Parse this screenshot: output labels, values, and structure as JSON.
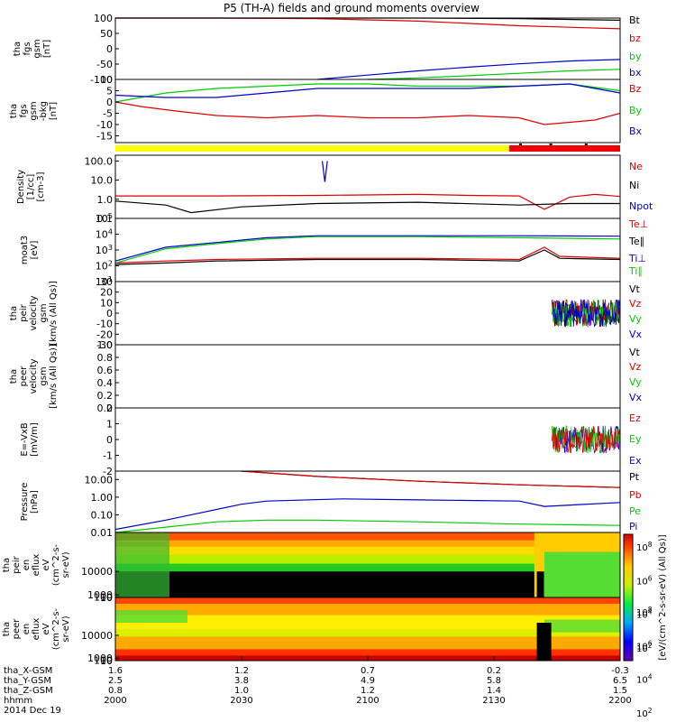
{
  "title": "P5 (TH-A) fields and ground moments overview",
  "colors": {
    "black": "#000000",
    "red": "#dd0000",
    "green": "#00cc00",
    "blue": "#0000cc",
    "yellow": "#ffff00",
    "barRed": "#ee0000"
  },
  "chart_data": [
    {
      "type": "line",
      "panel": "fgs_gsm_total",
      "ylabel": [
        "tha",
        "fgs",
        "gsm",
        "[nT]"
      ],
      "ylim": [
        -100,
        100
      ],
      "yticks": [
        "100",
        "50",
        "0",
        "-50",
        "-100"
      ],
      "series": [
        {
          "name": "Bt",
          "color": "black",
          "x": [
            0,
            0.2,
            0.4,
            0.6,
            0.8,
            1.0
          ],
          "y": [
            100,
            100,
            100,
            100,
            98,
            93
          ]
        },
        {
          "name": "bz",
          "color": "red",
          "x": [
            0,
            0.1,
            0.2,
            0.4,
            0.6,
            0.8,
            1.0
          ],
          "y": [
            100,
            100,
            100,
            98,
            90,
            75,
            65
          ]
        },
        {
          "name": "by",
          "color": "green",
          "x": [
            0.5,
            0.6,
            0.7,
            0.8,
            0.9,
            1.0
          ],
          "y": [
            -100,
            -95,
            -88,
            -80,
            -72,
            -67
          ]
        },
        {
          "name": "bx",
          "color": "blue",
          "x": [
            0.4,
            0.5,
            0.6,
            0.7,
            0.8,
            0.9,
            1.0
          ],
          "y": [
            -100,
            -86,
            -72,
            -60,
            -49,
            -40,
            -35
          ]
        }
      ]
    },
    {
      "type": "line",
      "panel": "fgs_gsm_detail",
      "ylabel": [
        "tha",
        "fgs",
        "gsm",
        "-bkg",
        "[nT]"
      ],
      "ylim": [
        -18,
        10
      ],
      "yticks": [
        "10",
        "5",
        "0",
        "-5",
        "-10",
        "-15"
      ],
      "series": [
        {
          "name": "Bz",
          "color": "red",
          "x": [
            0,
            0.05,
            0.12,
            0.2,
            0.3,
            0.4,
            0.5,
            0.6,
            0.7,
            0.8,
            0.85,
            0.9,
            0.95,
            1.0
          ],
          "y": [
            0,
            -2,
            -4,
            -6,
            -7,
            -6,
            -7,
            -7,
            -6,
            -7,
            -10,
            -9,
            -8,
            -5
          ]
        },
        {
          "name": "By",
          "color": "green",
          "x": [
            0,
            0.1,
            0.2,
            0.3,
            0.4,
            0.5,
            0.6,
            0.7,
            0.8,
            0.9,
            1.0
          ],
          "y": [
            0,
            4,
            6,
            7,
            8,
            8,
            7,
            7,
            7,
            8,
            5
          ]
        },
        {
          "name": "Bx",
          "color": "blue",
          "x": [
            0,
            0.1,
            0.2,
            0.3,
            0.4,
            0.5,
            0.6,
            0.7,
            0.8,
            0.9,
            1.0
          ],
          "y": [
            3,
            2,
            2,
            4,
            6,
            6,
            6,
            6,
            7,
            8,
            4
          ]
        }
      ]
    },
    {
      "type": "bar",
      "panel": "mode_bar",
      "segments": [
        {
          "from": 0,
          "to": 0.78,
          "color": "yellow"
        },
        {
          "from": 0.78,
          "to": 1.0,
          "color": "barRed"
        }
      ]
    },
    {
      "type": "line",
      "panel": "density",
      "scale": "log",
      "ylabel": [
        "Density",
        "[1/cc]",
        "[cm-3]"
      ],
      "ylim": [
        0.1,
        200
      ],
      "yticks": [
        "100.0",
        "10.0",
        "1.0",
        "0.1"
      ],
      "series": [
        {
          "name": "Ne",
          "color": "red",
          "x": [
            0,
            0.2,
            0.4,
            0.6,
            0.7,
            0.8,
            0.85,
            0.9,
            0.95,
            1.0
          ],
          "y": [
            1.5,
            1.5,
            1.6,
            1.8,
            1.6,
            1.5,
            0.3,
            1.3,
            1.8,
            1.4
          ]
        },
        {
          "name": "Ni",
          "color": "black",
          "x": [
            0,
            0.1,
            0.15,
            0.25,
            0.4,
            0.6,
            0.8,
            0.9,
            1.0
          ],
          "y": [
            0.8,
            0.5,
            0.2,
            0.4,
            0.6,
            0.7,
            0.5,
            0.6,
            0.6
          ]
        },
        {
          "name": "Npot",
          "color": "blue",
          "x": [
            0.41,
            0.415,
            0.42
          ],
          "y": [
            100,
            8,
            100
          ]
        }
      ]
    },
    {
      "type": "line",
      "panel": "temperature",
      "scale": "log",
      "ylabel": [
        "moat3",
        "[eV]"
      ],
      "ylim": [
        10,
        100000
      ],
      "yticks": [
        "10^5",
        "10^4",
        "10^3",
        "10^2",
        "10^1"
      ],
      "series": [
        {
          "name": "Te⊥",
          "color": "red",
          "x": [
            0,
            0.1,
            0.2,
            0.4,
            0.6,
            0.8,
            0.85,
            0.88,
            1.0
          ],
          "y": [
            150,
            200,
            250,
            300,
            300,
            250,
            1500,
            400,
            300
          ]
        },
        {
          "name": "Te∥",
          "color": "black",
          "x": [
            0,
            0.1,
            0.2,
            0.4,
            0.6,
            0.8,
            0.85,
            0.88,
            1.0
          ],
          "y": [
            120,
            150,
            200,
            250,
            250,
            200,
            1000,
            300,
            250
          ]
        },
        {
          "name": "Ti⊥",
          "color": "blue",
          "x": [
            0,
            0.1,
            0.2,
            0.3,
            0.4,
            0.6,
            0.8,
            1.0
          ],
          "y": [
            200,
            1500,
            3000,
            6000,
            8000,
            8000,
            8000,
            7500
          ]
        },
        {
          "name": "Ti∥",
          "color": "green",
          "x": [
            0,
            0.1,
            0.2,
            0.3,
            0.4,
            0.6,
            0.8,
            1.0
          ],
          "y": [
            150,
            1200,
            2500,
            5000,
            7000,
            7000,
            6000,
            5000
          ]
        }
      ]
    },
    {
      "type": "line",
      "panel": "peir_velocity",
      "ylabel": [
        "tha",
        "peir",
        "velocity",
        "gsm",
        "[km/s (All Qs)]"
      ],
      "ylim": [
        -30,
        30
      ],
      "yticks": [
        "30",
        "20",
        "10",
        "0",
        "-10",
        "-20",
        "-30"
      ],
      "series": [
        {
          "name": "Vt",
          "color": "black"
        },
        {
          "name": "Vz",
          "color": "red"
        },
        {
          "name": "Vy",
          "color": "green"
        },
        {
          "name": "Vx",
          "color": "blue"
        }
      ]
    },
    {
      "type": "line",
      "panel": "peer_velocity",
      "ylabel": [
        "tha",
        "peer",
        "velocity",
        "gsm",
        "[km/s (All Qs)]"
      ],
      "ylim": [
        0,
        1
      ],
      "yticks": [
        "1.0",
        "0.8",
        "0.6",
        "0.4",
        "0.2",
        "0.0"
      ],
      "series": [
        {
          "name": "Vt",
          "color": "black"
        },
        {
          "name": "Vz",
          "color": "red"
        },
        {
          "name": "Vy",
          "color": "green"
        },
        {
          "name": "Vx",
          "color": "blue"
        }
      ]
    },
    {
      "type": "line",
      "panel": "efield",
      "ylabel": [
        "E=-VxB",
        "[mV/m]"
      ],
      "ylim": [
        -2,
        2
      ],
      "yticks": [
        "2",
        "1",
        "0",
        "-1",
        "-2"
      ],
      "series": [
        {
          "name": "Ez",
          "color": "red"
        },
        {
          "name": "Ey",
          "color": "green"
        },
        {
          "name": "Ex",
          "color": "blue"
        }
      ]
    },
    {
      "type": "line",
      "panel": "pressure",
      "scale": "log",
      "ylabel": [
        "Pressure",
        "[nPa]"
      ],
      "ylim": [
        0.01,
        30
      ],
      "yticks": [
        "10.00",
        "1.00",
        "0.10",
        "0.01"
      ],
      "series": [
        {
          "name": "Pt",
          "color": "black",
          "x": [
            0.25,
            0.4,
            0.6,
            0.8,
            1.0
          ],
          "y": [
            30,
            15,
            8,
            5,
            3.5
          ]
        },
        {
          "name": "Pb",
          "color": "red",
          "x": [
            0.25,
            0.4,
            0.6,
            0.8,
            1.0
          ],
          "y": [
            30,
            15,
            8,
            5,
            3.5
          ]
        },
        {
          "name": "Pe",
          "color": "green",
          "x": [
            0,
            0.1,
            0.2,
            0.3,
            0.4,
            0.6,
            0.8,
            1.0
          ],
          "y": [
            0.01,
            0.02,
            0.04,
            0.05,
            0.05,
            0.04,
            0.03,
            0.025
          ]
        },
        {
          "name": "Pi",
          "color": "blue",
          "x": [
            0,
            0.1,
            0.15,
            0.25,
            0.3,
            0.45,
            0.6,
            0.8,
            0.85,
            1.0
          ],
          "y": [
            0.015,
            0.05,
            0.1,
            0.4,
            0.6,
            0.8,
            0.7,
            0.6,
            0.3,
            0.5
          ]
        }
      ]
    },
    {
      "type": "heatmap",
      "panel": "peir_spectrogram",
      "ylabel": [
        "tha",
        "peir",
        "en",
        "eflux",
        "eV",
        "(cm^2-s-",
        "sr-eV)"
      ],
      "ylim": [
        5,
        25000
      ],
      "yticks": [
        "10000",
        "1000",
        "100",
        "10"
      ]
    },
    {
      "type": "heatmap",
      "panel": "peer_spectrogram",
      "ylabel": [
        "tha",
        "peer",
        "en",
        "eflux",
        "eV",
        "(cm^2-s-",
        "sr-eV)"
      ],
      "ylim": [
        5,
        25000
      ],
      "yticks": [
        "10000",
        "1000",
        "100",
        "10"
      ]
    }
  ],
  "colorbar": {
    "ticks": [
      "10^8",
      "10^6",
      "10^4",
      "10^2"
    ],
    "label": "[eV/(cm^2-s-sr-eV) (All Qs)]"
  },
  "xaxis": {
    "row_labels": [
      "tha_X-GSM",
      "tha_Y-GSM",
      "tha_Z-GSM",
      "hhmm",
      "2014 Dec 19"
    ],
    "columns": [
      [
        "1.6",
        "2.5",
        "0.8",
        "2000"
      ],
      [
        "1.2",
        "3.8",
        "1.0",
        "2030"
      ],
      [
        "0.7",
        "4.9",
        "1.2",
        "2100"
      ],
      [
        "0.2",
        "5.8",
        "1.4",
        "2130"
      ],
      [
        "-0.3",
        "6.5",
        "1.5",
        "2200"
      ]
    ]
  }
}
